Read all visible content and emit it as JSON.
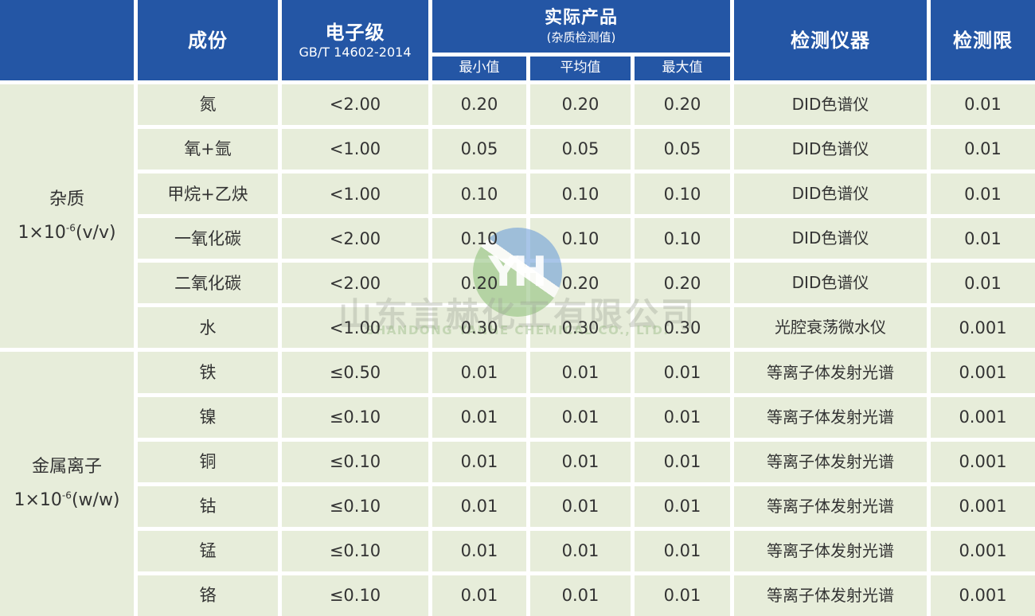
{
  "colors": {
    "header_bg": "#2456a5",
    "header_text": "#ffffff",
    "cell_bg": "#e7edda",
    "gap_color": "#ffffff",
    "text_color": "#333333",
    "logo_blue": "#6e9ed8",
    "logo_green": "#92c27e"
  },
  "header": {
    "corner": "",
    "composition": "成份",
    "grade": {
      "title": "电子级",
      "standard": "GB/T 14602-2014"
    },
    "actual": {
      "title": "实际产品",
      "subtitle": "(杂质检测值)"
    },
    "min": "最小值",
    "avg": "平均值",
    "max": "最大值",
    "instrument": "检测仪器",
    "limit": "检测限"
  },
  "groups": [
    {
      "label": "杂质",
      "unit_prefix": "1×10",
      "unit_sup": "-6",
      "unit_suffix": "(v/v)",
      "rows": [
        {
          "component": "氮",
          "spec": "<2.00",
          "min": "0.20",
          "avg": "0.20",
          "max": "0.20",
          "instrument": "DID色谱仪",
          "limit": "0.01"
        },
        {
          "component": "氧+氩",
          "spec": "<1.00",
          "min": "0.05",
          "avg": "0.05",
          "max": "0.05",
          "instrument": "DID色谱仪",
          "limit": "0.01"
        },
        {
          "component": "甲烷+乙炔",
          "spec": "<1.00",
          "min": "0.10",
          "avg": "0.10",
          "max": "0.10",
          "instrument": "DID色谱仪",
          "limit": "0.01"
        },
        {
          "component": "一氧化碳",
          "spec": "<2.00",
          "min": "0.10",
          "avg": "0.10",
          "max": "0.10",
          "instrument": "DID色谱仪",
          "limit": "0.01"
        },
        {
          "component": "二氧化碳",
          "spec": "<2.00",
          "min": "0.20",
          "avg": "0.20",
          "max": "0.20",
          "instrument": "DID色谱仪",
          "limit": "0.01"
        },
        {
          "component": "水",
          "spec": "<1.00",
          "min": "0.30",
          "avg": "0.30",
          "max": "0.30",
          "instrument": "光腔衰荡微水仪",
          "limit": "0.001"
        }
      ]
    },
    {
      "label": "金属离子",
      "unit_prefix": "1×10",
      "unit_sup": "-6",
      "unit_suffix": "(w/w)",
      "rows": [
        {
          "component": "铁",
          "spec": "≤0.50",
          "min": "0.01",
          "avg": "0.01",
          "max": "0.01",
          "instrument": "等离子体发射光谱",
          "limit": "0.001"
        },
        {
          "component": "镍",
          "spec": "≤0.10",
          "min": "0.01",
          "avg": "0.01",
          "max": "0.01",
          "instrument": "等离子体发射光谱",
          "limit": "0.001"
        },
        {
          "component": "铜",
          "spec": "≤0.10",
          "min": "0.01",
          "avg": "0.01",
          "max": "0.01",
          "instrument": "等离子体发射光谱",
          "limit": "0.001"
        },
        {
          "component": "钴",
          "spec": "≤0.10",
          "min": "0.01",
          "avg": "0.01",
          "max": "0.01",
          "instrument": "等离子体发射光谱",
          "limit": "0.001"
        },
        {
          "component": "锰",
          "spec": "≤0.10",
          "min": "0.01",
          "avg": "0.01",
          "max": "0.01",
          "instrument": "等离子体发射光谱",
          "limit": "0.001"
        },
        {
          "component": "铬",
          "spec": "≤0.10",
          "min": "0.01",
          "avg": "0.01",
          "max": "0.01",
          "instrument": "等离子体发射光谱",
          "limit": "0.001"
        }
      ]
    }
  ],
  "watermark": {
    "logo_text": "YH",
    "company_cn": "山东言赫化工有限公司",
    "company_en": "SHANDONG YANHE CHEMICAL CO., LTD."
  }
}
